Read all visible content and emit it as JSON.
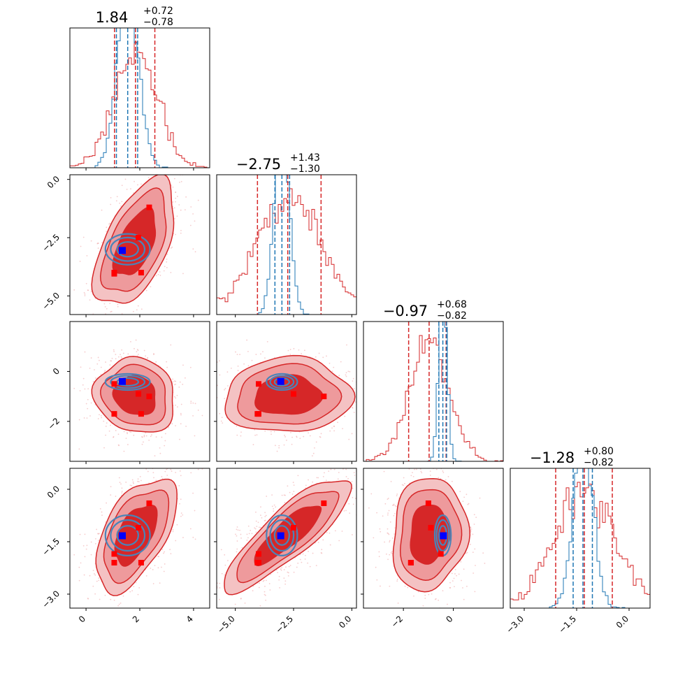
{
  "chart_data": {
    "type": "corner",
    "parameters": 4,
    "colors": {
      "samples_a": "#d62728",
      "samples_a_light": "#ee9a9c",
      "samples_b": "#1f77b4",
      "contour_b": "#4a84b8",
      "marker_primary": "#0000ff",
      "marker_secondary": "#ff0000"
    },
    "titles": [
      {
        "median": "1.84",
        "plus": "+0.72",
        "minus": "−0.78"
      },
      {
        "median": "−2.75",
        "plus": "+1.43",
        "minus": "−1.30"
      },
      {
        "median": "−0.97",
        "plus": "+0.68",
        "minus": "−0.82"
      },
      {
        "median": "−1.28",
        "plus": "+0.80",
        "minus": "−0.82"
      }
    ],
    "ranges": [
      [
        -0.6,
        4.6
      ],
      [
        -5.8,
        0.2
      ],
      [
        -3.6,
        2.0
      ],
      [
        -3.4,
        0.6
      ]
    ],
    "ticks": [
      {
        "values": [
          0,
          2,
          4
        ],
        "labels": [
          "0",
          "2",
          "4"
        ]
      },
      {
        "values": [
          -5.0,
          -2.5,
          0.0
        ],
        "labels": [
          "−5.0",
          "−2.5",
          "0.0"
        ]
      },
      {
        "values": [
          -2,
          0
        ],
        "labels": [
          "−2",
          "0"
        ]
      },
      {
        "values": [
          -3.0,
          -1.5,
          0.0
        ],
        "labels": [
          "−3.0",
          "−1.5",
          "0.0"
        ]
      }
    ],
    "quantiles_a": [
      [
        1.06,
        1.84,
        2.56
      ],
      [
        -4.05,
        -2.75,
        -1.32
      ],
      [
        -1.79,
        -0.97,
        -0.29
      ],
      [
        -2.1,
        -1.28,
        -0.48
      ]
    ],
    "quantiles_b": [
      [
        1.13,
        1.55,
        1.92
      ],
      [
        -3.3,
        -3.0,
        -2.67
      ],
      [
        -0.58,
        -0.42,
        -0.27
      ],
      [
        -1.6,
        -1.32,
        -1.05
      ]
    ],
    "marker_primary": [
      1.35,
      -3.05,
      -0.4,
      -1.33
    ],
    "markers_secondary": [
      [
        1.05,
        -4.0,
        -0.5,
        -1.85
      ],
      [
        1.05,
        -4.05,
        -1.7,
        -2.1
      ],
      [
        1.95,
        -2.5,
        -0.9,
        -1.1
      ],
      [
        2.35,
        -1.2,
        -1.0,
        -0.4
      ],
      [
        2.05,
        -4.0,
        -1.7,
        -2.1
      ]
    ]
  }
}
